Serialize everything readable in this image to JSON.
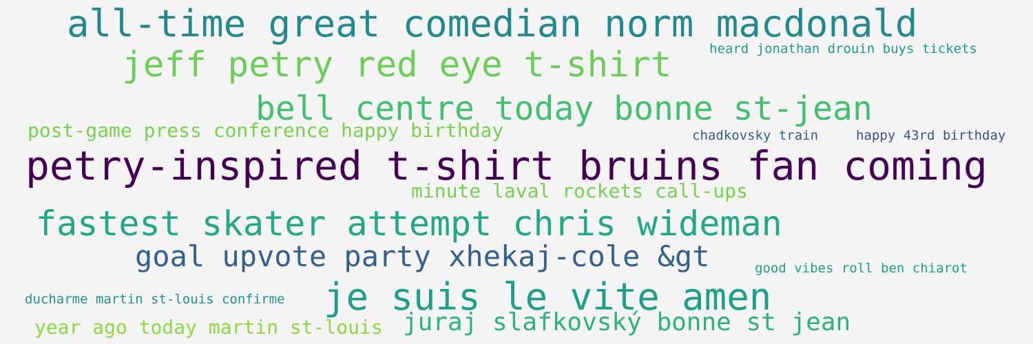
{
  "background": "#f4f4f4",
  "phrases": [
    {
      "text": "all-time great comedian norm macdonald",
      "color": "#23898e"
    },
    {
      "text": "jeff petry red eye t-shirt",
      "color": "#6ccd5a"
    },
    {
      "text": "heard jonathan drouin buys tickets",
      "color": "#1e9c89"
    },
    {
      "text": "bell centre today bonne st-jean",
      "color": "#44bf70"
    },
    {
      "text": "post-game press conference happy birthday",
      "color": "#7ad151"
    },
    {
      "text": "chadkovsky train",
      "color": "#365c8d"
    },
    {
      "text": "happy 43rd birthday",
      "color": "#3b528b"
    },
    {
      "text": "petry-inspired t-shirt bruins fan coming",
      "color": "#440154"
    },
    {
      "text": "minute laval rockets call-ups",
      "color": "#75d054"
    },
    {
      "text": "fastest skater attempt chris wideman",
      "color": "#22a884"
    },
    {
      "text": "goal upvote party xhekaj-cole &gt",
      "color": "#355f8d"
    },
    {
      "text": "good vibes roll ben chiarot",
      "color": "#1fa187"
    },
    {
      "text": "je suis le vite amen",
      "color": "#1f9e89"
    },
    {
      "text": "ducharme martin st-louis confirme",
      "color": "#21918c"
    },
    {
      "text": "juraj slafkovský bonne st jean",
      "color": "#2db27d"
    },
    {
      "text": "year ago today martin st-louis",
      "color": "#8fd744"
    }
  ]
}
